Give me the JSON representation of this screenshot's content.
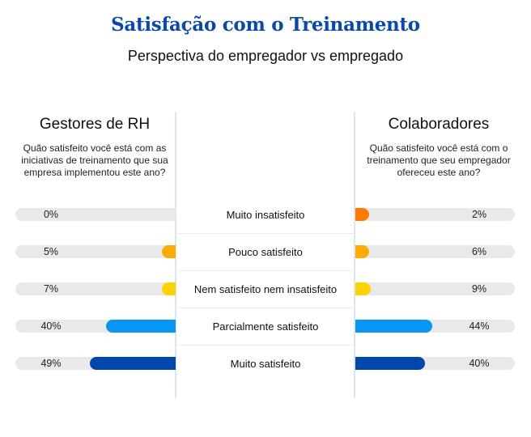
{
  "header": {
    "title": "Satisfação com o Treinamento",
    "subtitle": "Perspectiva do empregador vs empregado"
  },
  "left_group": {
    "title": "Gestores de RH",
    "question": "Quão satisfeito você está com as iniciativas de treinamento que sua empresa implementou este ano?"
  },
  "right_group": {
    "title": "Colaboradores",
    "question": "Quão satisfeito você está com o treinamento que seu empregador ofereceu este ano?"
  },
  "rows": [
    {
      "label": "Muito insatisfeito",
      "left_value": 0,
      "left_text": "0%",
      "right_value": 2,
      "right_text": "2%",
      "color": "#ff7a00"
    },
    {
      "label": "Pouco satisfeito",
      "left_value": 5,
      "left_text": "5%",
      "right_value": 6,
      "right_text": "6%",
      "color": "#ffab00"
    },
    {
      "label": "Nem satisfeito nem insatisfeito",
      "left_value": 7,
      "left_text": "7%",
      "right_value": 9,
      "right_text": "9%",
      "color": "#ffd200"
    },
    {
      "label": "Parcialmente satisfeito",
      "left_value": 40,
      "left_text": "40%",
      "right_value": 44,
      "right_text": "44%",
      "color": "#0996f2"
    },
    {
      "label": "Muito satisfeito",
      "left_value": 49,
      "left_text": "49%",
      "right_value": 40,
      "right_text": "40%",
      "color": "#0047ab"
    }
  ],
  "colors": {
    "title": "#0a4aa6",
    "track": "#e9e9e9",
    "divider": "#dde6ee"
  },
  "chart_data": {
    "type": "bar",
    "title": "Satisfação com o Treinamento",
    "subtitle": "Perspectiva do empregador vs empregado",
    "orientation": "horizontal-diverging",
    "categories": [
      "Muito insatisfeito",
      "Pouco satisfeito",
      "Nem satisfeito nem insatisfeito",
      "Parcialmente satisfeito",
      "Muito satisfeito"
    ],
    "series": [
      {
        "name": "Gestores de RH",
        "values": [
          0,
          5,
          7,
          40,
          49
        ]
      },
      {
        "name": "Colaboradores",
        "values": [
          2,
          6,
          9,
          44,
          40
        ]
      }
    ],
    "unit": "%",
    "xlabel": "",
    "ylabel": "",
    "xlim": [
      0,
      100
    ],
    "grid": false,
    "legend": "group headers above each side"
  }
}
